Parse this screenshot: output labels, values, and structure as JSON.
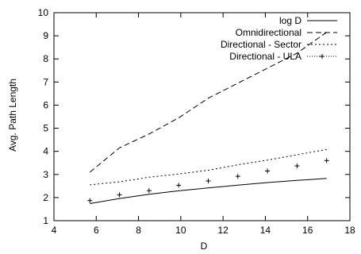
{
  "chart_data": {
    "type": "line",
    "title": "",
    "xlabel": "D",
    "ylabel": "Avg. Path Length",
    "xlim": [
      4,
      18
    ],
    "ylim": [
      1,
      10
    ],
    "xticks": [
      4,
      6,
      8,
      10,
      12,
      14,
      16,
      18
    ],
    "yticks": [
      1,
      2,
      3,
      4,
      5,
      6,
      7,
      8,
      9,
      10
    ],
    "grid": false,
    "legend_position": "top-right",
    "series": [
      {
        "name": "log D",
        "style": "solid",
        "color": "#000000",
        "x": [
          5.7,
          7.1,
          8.5,
          9.9,
          11.3,
          12.7,
          14.1,
          15.5,
          16.9
        ],
        "y": [
          1.74,
          1.96,
          2.14,
          2.29,
          2.42,
          2.54,
          2.65,
          2.74,
          2.83
        ]
      },
      {
        "name": "Omnidirectional",
        "style": "dashed",
        "color": "#000000",
        "x": [
          5.7,
          7.1,
          8.5,
          9.9,
          11.3,
          12.7,
          14.1,
          15.5,
          16.9
        ],
        "y": [
          3.1,
          4.15,
          4.75,
          5.45,
          6.3,
          6.95,
          7.6,
          8.25,
          9.15
        ]
      },
      {
        "name": "Directional - Sector",
        "style": "dotted",
        "color": "#000000",
        "x": [
          5.7,
          7.1,
          8.5,
          9.9,
          11.3,
          12.7,
          14.1,
          15.5,
          16.9
        ],
        "y": [
          2.55,
          2.68,
          2.88,
          3.02,
          3.18,
          3.42,
          3.62,
          3.85,
          4.08
        ]
      },
      {
        "name": "Directional - ULA",
        "style": "points-plus",
        "color": "#000000",
        "x": [
          5.7,
          7.1,
          8.5,
          9.9,
          11.3,
          12.7,
          14.1,
          15.5,
          16.9
        ],
        "y": [
          1.87,
          2.12,
          2.3,
          2.53,
          2.72,
          2.92,
          3.15,
          3.37,
          3.6
        ]
      }
    ]
  }
}
